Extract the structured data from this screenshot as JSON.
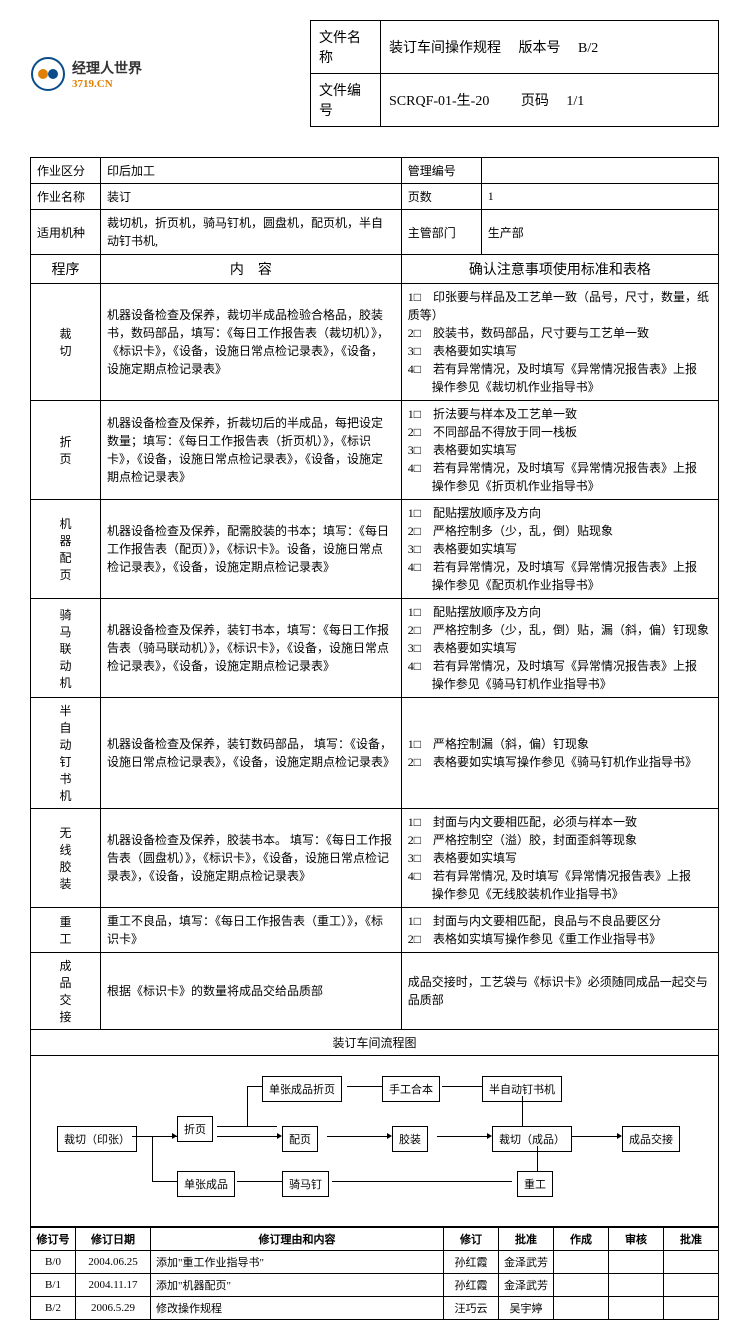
{
  "logo": {
    "cn": "经理人世界",
    "en": "3719.CN"
  },
  "header": {
    "doc_name_label": "文件名称",
    "doc_name": "装订车间操作规程",
    "version_label": "版本号",
    "version": "B/2",
    "doc_no_label": "文件编号",
    "doc_no": "SCRQF-01-生-20",
    "page_label": "页码",
    "page": "1/1"
  },
  "info": {
    "area_label": "作业区分",
    "area": "印后加工",
    "mgmt_no_label": "管理编号",
    "mgmt_no": "",
    "job_label": "作业名称",
    "job": "装订",
    "pages_label": "页数",
    "pages": "1",
    "machine_label": "适用机种",
    "machine": "裁切机，折页机，骑马钉机，圆盘机，配页机，半自动钉书机,",
    "dept_label": "主管部门",
    "dept": "生产部"
  },
  "columns": {
    "prog": "程序",
    "content": "内　容",
    "notes": "确认注意事项使用标准和表格"
  },
  "rows": [
    {
      "prog": "裁切",
      "content": "机器设备检查及保养，裁切半成品检验合格品，胶装书，数码部品，填写：《每日工作报告表（裁切机）》，《标识卡》，《设备，设施日常点检记录表》，《设备，设施定期点检记录表》",
      "notes": "1□　印张要与样品及工艺单一致（品号，尺寸，数量，纸质等）\n2□　胶装书，数码部品，尺寸要与工艺单一致\n3□　表格要如实填写\n4□　若有异常情况，及时填写《异常情况报告表》上报\n　　操作参见《裁切机作业指导书》"
    },
    {
      "prog": "折页",
      "content": "机器设备检查及保养，折裁切后的半成品，每把设定数量；填写：《每日工作报告表（折页机）》，《标识卡》，《设备，设施日常点检记录表》，《设备，设施定期点检记录表》",
      "notes": "1□　折法要与样本及工艺单一致\n2□　不同部品不得放于同一栈板\n3□　表格要如实填写\n4□　若有异常情况，及时填写《异常情况报告表》上报\n　　操作参见《折页机作业指导书》"
    },
    {
      "prog": "机器配页",
      "content": "机器设备检查及保养，配需胶装的书本；填写：《每日工作报告表（配页）》，《标识卡》。设备，设施日常点检记录表》，《设备，设施定期点检记录表》",
      "notes": "1□　配贴摆放顺序及方向\n2□　严格控制多（少，乱，倒）贴现象\n3□　表格要如实填写\n4□　若有异常情况，及时填写《异常情况报告表》上报\n　　操作参见《配页机作业指导书》"
    },
    {
      "prog": "骑马联动机",
      "content": "机器设备检查及保养，装钉书本，填写：《每日工作报告表（骑马联动机）》，《标识卡》，《设备，设施日常点检记录表》，《设备，设施定期点检记录表》",
      "notes": "1□　配贴摆放顺序及方向\n2□　严格控制多（少，乱，倒）贴，漏（斜，偏）钉现象\n3□　表格要如实填写\n4□　若有异常情况，及时填写《异常情况报告表》上报\n　　操作参见《骑马钉机作业指导书》"
    },
    {
      "prog": "半自动钉书机",
      "content": "机器设备检查及保养，装钉数码部品，\n填写：《设备，设施日常点检记录表》，《设备，设施定期点检记录表》",
      "notes": "1□　严格控制漏（斜，偏）钉现象\n2□　表格要如实填写操作参见《骑马钉机作业指导书》"
    },
    {
      "prog": "无线胶装",
      "content": "机器设备检查及保养，胶装书本。\n填写：《每日工作报告表（圆盘机）》，《标识卡》，《设备，设施日常点检记录表》，《设备，设施定期点检记录表》",
      "notes": "1□　封面与内文要相匹配，必须与样本一致\n2□　严格控制空（溢）胶，封面歪斜等现象\n3□　表格要如实填写\n4□　若有异常情况, 及时填写《异常情况报告表》上报\n　　操作参见《无线胶装机作业指导书》"
    },
    {
      "prog": "重工",
      "content": "重工不良品，填写：《每日工作报告表（重工）》，《标识卡》",
      "notes": "1□　封面与内文要相匹配，良品与不良品要区分\n2□　表格如实填写操作参见《重工作业指导书》"
    },
    {
      "prog": "成品交接",
      "content": "根据《标识卡》的数量将成品交给品质部",
      "notes": "成品交接时，工艺袋与《标识卡》必须随同成品一起交与品质部"
    }
  ],
  "flowchart": {
    "title": "装订车间流程图",
    "boxes": {
      "cut": "裁切（印张）",
      "fold": "折页",
      "single": "单张成品",
      "sfold": "单张成品折页",
      "collate": "配页",
      "saddle": "骑马钉",
      "manual": "手工合本",
      "glue": "胶装",
      "semi": "半自动钉书机",
      "finalcut": "裁切（成品）",
      "rework": "重工",
      "handover": "成品交接"
    }
  },
  "revisions": {
    "headers": {
      "rev_no": "修订号",
      "rev_date": "修订日期",
      "reason": "修订理由和内容",
      "revised": "修订",
      "approved": "批准",
      "made": "作成",
      "audit": "审核",
      "approve2": "批准"
    },
    "rows": [
      {
        "no": "B/0",
        "date": "2004.06.25",
        "reason": "添加\"重工作业指导书\"",
        "rev": "孙红霞",
        "appr": "金泽武芳",
        "made": "",
        "audit": "",
        "appr2": ""
      },
      {
        "no": "B/1",
        "date": "2004.11.17",
        "reason": "添加\"机器配页\"",
        "rev": "孙红霞",
        "appr": "金泽武芳",
        "made": "",
        "audit": "",
        "appr2": ""
      },
      {
        "no": "B/2",
        "date": "2006.5.29",
        "reason": "修改操作规程",
        "rev": "汪巧云",
        "appr": "吴宇婷",
        "made": "",
        "audit": "",
        "appr2": ""
      }
    ]
  }
}
